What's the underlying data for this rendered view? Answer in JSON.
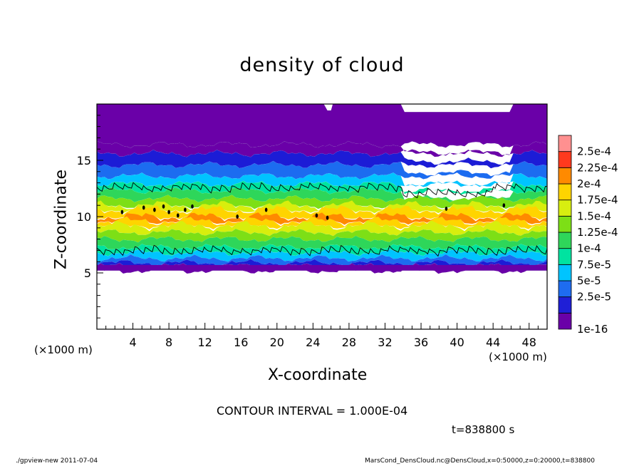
{
  "chart_data": {
    "type": "heatmap",
    "title": "density of cloud",
    "xlabel": "X-coordinate",
    "ylabel": "Z-coordinate",
    "x_unit": "(×1000 m)",
    "xlim": [
      0,
      50
    ],
    "ylim": [
      0,
      20
    ],
    "x_ticks": [
      "4",
      "8",
      "12",
      "16",
      "20",
      "24",
      "28",
      "32",
      "36",
      "40",
      "44",
      "48"
    ],
    "y_ticks": [
      "5",
      "10",
      "15"
    ],
    "colorbar_labels": [
      "1e-16",
      "2.5e-5",
      "5e-5",
      "7.5e-5",
      "1e-4",
      "1.25e-4",
      "1.5e-4",
      "1.75e-4",
      "2e-4",
      "2.25e-4",
      "2.5e-4"
    ],
    "colorbar_colors": [
      "#6a00a8",
      "#1f1fd6",
      "#1e6cf0",
      "#00c4ff",
      "#00e3a0",
      "#2fd65a",
      "#7ddf16",
      "#d8ee10",
      "#ffd400",
      "#ff8a00",
      "#ff3a1e",
      "#ff9090"
    ],
    "contour_interval": "CONTOUR INTERVAL = 1.000E-04",
    "contour_level": 0.0001,
    "cloud_layer": {
      "z_bottom": 5.2,
      "z_contour_low": 7.0,
      "z_peak": 10.2,
      "z_contour_high": 12.6,
      "z_top": 20
    },
    "time": "t=838800 s"
  },
  "footer": {
    "left": "./gpview-new   2011-07-04",
    "right": "MarsCond_DensCloud.nc@DensCloud,x=0:50000,z=0:20000,t=838800"
  }
}
